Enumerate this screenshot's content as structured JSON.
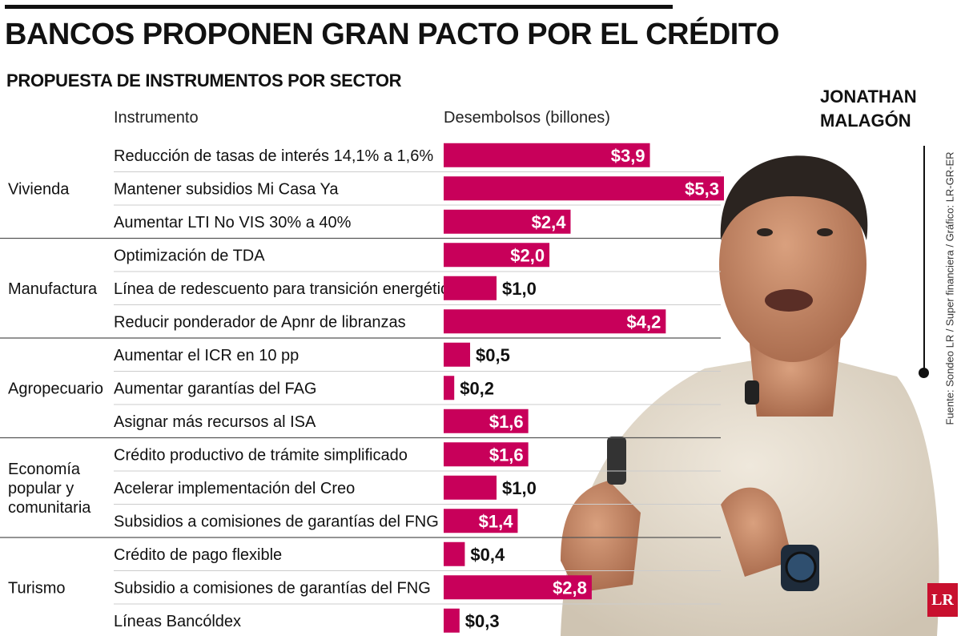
{
  "header": {
    "title": "BANCOS PROPONEN GRAN PACTO POR EL CRÉDITO",
    "subtitle": "PROPUESTA DE INSTRUMENTOS POR SECTOR",
    "col_instrument": "Instrumento",
    "col_value": "Desembolsos (billones)"
  },
  "photo": {
    "name_line1": "JONATHAN",
    "name_line2": "MALAGÓN",
    "source": "Fuente: Sondeo LR / Super financiera / Gráfico: LR-GR-ER",
    "logo": "LR"
  },
  "colors": {
    "bar": "#c8005a",
    "text": "#111111",
    "divider": "#555555"
  },
  "chart_data": {
    "type": "bar",
    "orientation": "horizontal",
    "title": "BANCOS PROPONEN GRAN PACTO POR EL CRÉDITO",
    "subtitle": "PROPUESTA DE INSTRUMENTOS POR SECTOR",
    "xlabel": "Desembolsos (billones)",
    "ylabel": "Instrumento",
    "unit_prefix": "$",
    "decimal_separator": ",",
    "xlim": [
      0,
      6
    ],
    "groups": [
      {
        "sector": [
          "Vivienda"
        ],
        "items": [
          {
            "label": "Reducción de tasas de interés 14,1% a 1,6%",
            "value": 3.9,
            "display": "$3,9"
          },
          {
            "label": "Mantener subsidios Mi Casa Ya",
            "value": 5.3,
            "display": "$5,3"
          },
          {
            "label": "Aumentar LTI No VIS 30% a 40%",
            "value": 2.4,
            "display": "$2,4"
          }
        ]
      },
      {
        "sector": [
          "Manufactura"
        ],
        "items": [
          {
            "label": "Optimización de TDA",
            "value": 2.0,
            "display": "$2,0"
          },
          {
            "label": "Línea de redescuento para transición energética",
            "value": 1.0,
            "display": "$1,0"
          },
          {
            "label": "Reducir ponderador de Apnr de libranzas",
            "value": 4.2,
            "display": "$4,2"
          }
        ]
      },
      {
        "sector": [
          "Agropecuario"
        ],
        "items": [
          {
            "label": "Aumentar el ICR en 10 pp",
            "value": 0.5,
            "display": "$0,5"
          },
          {
            "label": "Aumentar garantías del FAG",
            "value": 0.2,
            "display": "$0,2"
          },
          {
            "label": "Asignar más recursos al ISA",
            "value": 1.6,
            "display": "$1,6"
          }
        ]
      },
      {
        "sector": [
          "Economía",
          "popular y",
          "comunitaria"
        ],
        "items": [
          {
            "label": "Crédito productivo de trámite simplificado",
            "value": 1.6,
            "display": "$1,6"
          },
          {
            "label": "Acelerar implementación del Creo",
            "value": 1.0,
            "display": "$1,0"
          },
          {
            "label": "Subsidios a comisiones de garantías del FNG",
            "value": 1.4,
            "display": "$1,4"
          }
        ]
      },
      {
        "sector": [
          "Turismo"
        ],
        "items": [
          {
            "label": "Crédito de pago flexible",
            "value": 0.4,
            "display": "$0,4"
          },
          {
            "label": "Subsidio a comisiones de garantías del FNG",
            "value": 2.8,
            "display": "$2,8"
          },
          {
            "label": "Líneas Bancóldex",
            "value": 0.3,
            "display": "$0,3"
          }
        ]
      }
    ]
  }
}
